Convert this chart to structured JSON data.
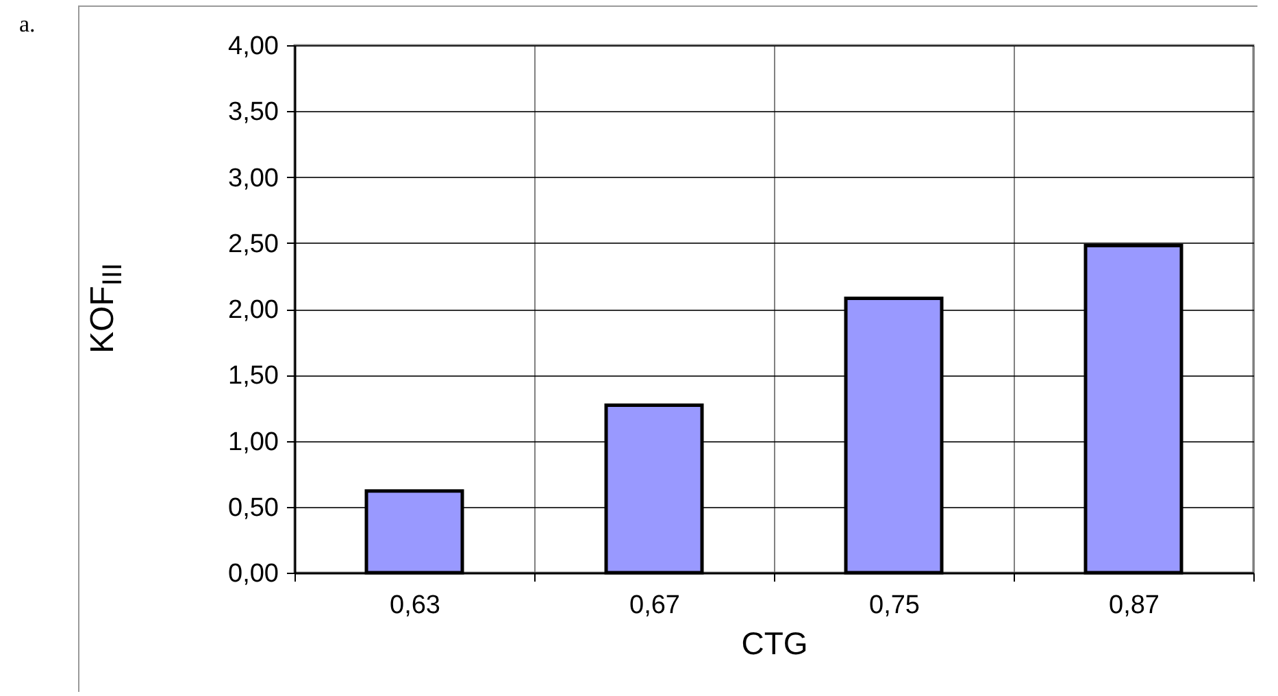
{
  "chart_data": {
    "type": "bar",
    "xlabel": "CTG",
    "ylabel": "KOF$_{III}$",
    "annotations": [
      "a."
    ],
    "categories": [
      "0,63",
      "0,67",
      "0,75",
      "0,87"
    ],
    "values": [
      0.62,
      1.27,
      2.08,
      2.48
    ],
    "color": "#9999ff",
    "ylim": [
      0,
      4
    ],
    "yticks": [
      {
        "value": 0,
        "label": "0,00"
      },
      {
        "value": 0.5,
        "label": "0,50"
      },
      {
        "value": 1,
        "label": "1,00"
      },
      {
        "value": 1.5,
        "label": "1,50"
      },
      {
        "value": 2,
        "label": "2,00"
      },
      {
        "value": 2.5,
        "label": "2,50"
      },
      {
        "value": 3,
        "label": "3,00"
      },
      {
        "value": 3.5,
        "label": "3,50"
      },
      {
        "value": 4,
        "label": "4,00"
      }
    ],
    "grid": true
  }
}
